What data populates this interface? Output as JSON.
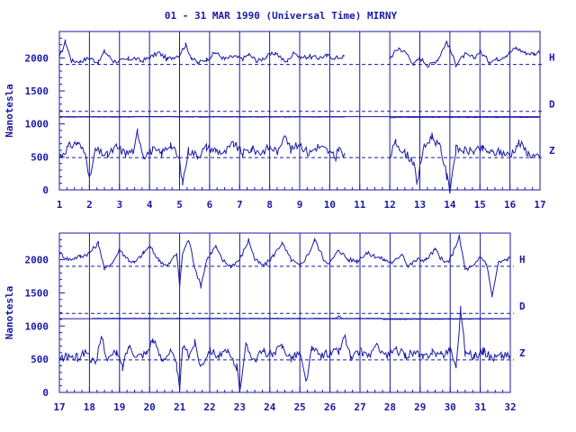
{
  "chart_data": [
    {
      "type": "line",
      "title": "01 - 31 MAR 1990 (Universal Time) MIRNY",
      "ylabel": "Nanotesla",
      "xlim": [
        1,
        17
      ],
      "ylim": [
        0,
        2400
      ],
      "x_ticks": [
        "1",
        "2",
        "3",
        "4",
        "5",
        "6",
        "7",
        "8",
        "9",
        "10",
        "11",
        "12",
        "13",
        "14",
        "15",
        "16",
        "17"
      ],
      "y_ticks": [
        "0",
        "500",
        "1000",
        "1500",
        "2000"
      ],
      "series": [
        {
          "name": "H",
          "baseline": 1900,
          "gaps": [
            [
              10.5,
              12.0
            ]
          ],
          "points": [
            [
              1,
              2000
            ],
            [
              1.2,
              2250
            ],
            [
              1.4,
              1950
            ],
            [
              1.7,
              1950
            ],
            [
              2,
              2000
            ],
            [
              2.3,
              1930
            ],
            [
              2.5,
              2100
            ],
            [
              2.8,
              1950
            ],
            [
              3,
              1950
            ],
            [
              3.3,
              1980
            ],
            [
              3.5,
              2000
            ],
            [
              3.7,
              1950
            ],
            [
              4,
              2000
            ],
            [
              4.3,
              2080
            ],
            [
              4.6,
              1980
            ],
            [
              5,
              2050
            ],
            [
              5.2,
              2200
            ],
            [
              5.4,
              2000
            ],
            [
              5.6,
              1920
            ],
            [
              5.9,
              1980
            ],
            [
              6.2,
              2080
            ],
            [
              6.5,
              1980
            ],
            [
              6.8,
              2020
            ],
            [
              7.1,
              1980
            ],
            [
              7.3,
              2050
            ],
            [
              7.6,
              1950
            ],
            [
              7.9,
              2020
            ],
            [
              8.2,
              2080
            ],
            [
              8.4,
              1980
            ],
            [
              8.6,
              1950
            ],
            [
              8.8,
              2100
            ],
            [
              9.0,
              2000
            ],
            [
              9.3,
              2020
            ],
            [
              9.6,
              2000
            ],
            [
              9.9,
              2030
            ],
            [
              10.2,
              2000
            ],
            [
              10.45,
              2020
            ],
            [
              12.0,
              2000
            ],
            [
              12.3,
              2150
            ],
            [
              12.6,
              2050
            ],
            [
              12.8,
              1900
            ],
            [
              13.0,
              2000
            ],
            [
              13.3,
              1880
            ],
            [
              13.6,
              1980
            ],
            [
              13.9,
              2250
            ],
            [
              14.2,
              1900
            ],
            [
              14.5,
              2050
            ],
            [
              14.8,
              2000
            ],
            [
              15.0,
              2100
            ],
            [
              15.3,
              1950
            ],
            [
              15.6,
              1980
            ],
            [
              15.9,
              2050
            ],
            [
              16.2,
              2150
            ],
            [
              16.5,
              2080
            ],
            [
              16.8,
              2060
            ],
            [
              17,
              2100
            ]
          ]
        },
        {
          "name": "D",
          "baseline": 1190,
          "gaps": [
            [
              10.5,
              12.0
            ]
          ],
          "points": [
            [
              1,
              1105
            ],
            [
              3.4,
              1105
            ],
            [
              3.5,
              1110
            ],
            [
              4.8,
              1110
            ],
            [
              5,
              1105
            ],
            [
              10.45,
              1105
            ],
            [
              12.0,
              1090
            ],
            [
              12.2,
              1100
            ],
            [
              17,
              1100
            ]
          ]
        },
        {
          "name": "Z",
          "baseline": 490,
          "gaps": [
            [
              10.5,
              12.0
            ]
          ],
          "points": [
            [
              1,
              500
            ],
            [
              1.3,
              650
            ],
            [
              1.6,
              720
            ],
            [
              1.9,
              520
            ],
            [
              2.0,
              150
            ],
            [
              2.2,
              600
            ],
            [
              2.6,
              520
            ],
            [
              2.9,
              650
            ],
            [
              3.2,
              550
            ],
            [
              3.5,
              600
            ],
            [
              3.6,
              900
            ],
            [
              3.8,
              520
            ],
            [
              4.1,
              600
            ],
            [
              4.4,
              550
            ],
            [
              4.7,
              700
            ],
            [
              5.0,
              450
            ],
            [
              5.1,
              100
            ],
            [
              5.3,
              600
            ],
            [
              5.6,
              520
            ],
            [
              5.9,
              650
            ],
            [
              6.2,
              600
            ],
            [
              6.5,
              560
            ],
            [
              6.8,
              700
            ],
            [
              7.1,
              550
            ],
            [
              7.4,
              620
            ],
            [
              7.7,
              560
            ],
            [
              8.0,
              650
            ],
            [
              8.3,
              580
            ],
            [
              8.5,
              880
            ],
            [
              8.7,
              600
            ],
            [
              9.0,
              700
            ],
            [
              9.3,
              550
            ],
            [
              9.6,
              660
            ],
            [
              9.9,
              600
            ],
            [
              10.2,
              480
            ],
            [
              10.3,
              650
            ],
            [
              10.45,
              500
            ],
            [
              12.0,
              500
            ],
            [
              12.2,
              720
            ],
            [
              12.5,
              560
            ],
            [
              12.8,
              420
            ],
            [
              12.9,
              60
            ],
            [
              13.1,
              600
            ],
            [
              13.4,
              820
            ],
            [
              13.7,
              620
            ],
            [
              13.9,
              200
            ],
            [
              14.0,
              0
            ],
            [
              14.2,
              620
            ],
            [
              14.5,
              600
            ],
            [
              14.8,
              580
            ],
            [
              15.1,
              620
            ],
            [
              15.4,
              560
            ],
            [
              15.7,
              580
            ],
            [
              16.0,
              520
            ],
            [
              16.3,
              720
            ],
            [
              16.6,
              560
            ],
            [
              17,
              470
            ]
          ]
        }
      ]
    },
    {
      "type": "line",
      "title": "",
      "ylabel": "Nanotesla",
      "xlim": [
        17,
        32
      ],
      "ylim": [
        0,
        2400
      ],
      "x_ticks": [
        "17",
        "18",
        "19",
        "20",
        "21",
        "22",
        "23",
        "24",
        "25",
        "26",
        "27",
        "28",
        "29",
        "30",
        "31",
        "32"
      ],
      "y_ticks": [
        "0",
        "500",
        "1000",
        "1500",
        "2000"
      ],
      "series": [
        {
          "name": "H",
          "baseline": 1900,
          "gaps": [],
          "points": [
            [
              17,
              2100
            ],
            [
              17.3,
              2000
            ],
            [
              17.7,
              2050
            ],
            [
              18,
              2100
            ],
            [
              18.3,
              2250
            ],
            [
              18.5,
              1850
            ],
            [
              18.8,
              1980
            ],
            [
              19.0,
              2150
            ],
            [
              19.3,
              2000
            ],
            [
              19.5,
              1950
            ],
            [
              19.8,
              2100
            ],
            [
              20.0,
              2200
            ],
            [
              20.3,
              2000
            ],
            [
              20.6,
              1900
            ],
            [
              20.9,
              2100
            ],
            [
              21.0,
              1600
            ],
            [
              21.1,
              2100
            ],
            [
              21.3,
              2300
            ],
            [
              21.5,
              1900
            ],
            [
              21.7,
              1600
            ],
            [
              21.9,
              2000
            ],
            [
              22.2,
              2200
            ],
            [
              22.4,
              2000
            ],
            [
              22.7,
              1900
            ],
            [
              23.0,
              2000
            ],
            [
              23.3,
              2300
            ],
            [
              23.5,
              2000
            ],
            [
              23.8,
              1900
            ],
            [
              24.1,
              2050
            ],
            [
              24.4,
              2250
            ],
            [
              24.7,
              2000
            ],
            [
              25.0,
              1900
            ],
            [
              25.3,
              2100
            ],
            [
              25.5,
              2300
            ],
            [
              25.8,
              2000
            ],
            [
              26.0,
              1950
            ],
            [
              26.3,
              2150
            ],
            [
              26.6,
              2000
            ],
            [
              26.9,
              1980
            ],
            [
              27.2,
              2100
            ],
            [
              27.5,
              2050
            ],
            [
              27.8,
              2000
            ],
            [
              28.1,
              1950
            ],
            [
              28.4,
              2100
            ],
            [
              28.6,
              1900
            ],
            [
              28.9,
              2000
            ],
            [
              29.2,
              2000
            ],
            [
              29.5,
              2150
            ],
            [
              29.8,
              1950
            ],
            [
              30.0,
              2000
            ],
            [
              30.3,
              2350
            ],
            [
              30.5,
              1850
            ],
            [
              30.8,
              1900
            ],
            [
              31.0,
              2050
            ],
            [
              31.2,
              1950
            ],
            [
              31.4,
              1450
            ],
            [
              31.6,
              1950
            ],
            [
              31.9,
              2000
            ],
            [
              32,
              2050
            ]
          ]
        },
        {
          "name": "D",
          "baseline": 1190,
          "gaps": [
            [
              17.0,
              18.1
            ]
          ],
          "points": [
            [
              18.1,
              1115
            ],
            [
              26.2,
              1115
            ],
            [
              26.3,
              1150
            ],
            [
              26.4,
              1115
            ],
            [
              27.7,
              1115
            ],
            [
              27.8,
              1100
            ],
            [
              32,
              1110
            ]
          ]
        },
        {
          "name": "Z",
          "baseline": 490,
          "gaps": [],
          "points": [
            [
              17,
              500
            ],
            [
              17.3,
              550
            ],
            [
              17.6,
              520
            ],
            [
              17.9,
              620
            ],
            [
              18.0,
              550
            ],
            [
              18.2,
              400
            ],
            [
              18.4,
              850
            ],
            [
              18.6,
              500
            ],
            [
              18.9,
              600
            ],
            [
              19.1,
              380
            ],
            [
              19.3,
              700
            ],
            [
              19.6,
              550
            ],
            [
              19.9,
              600
            ],
            [
              20.1,
              800
            ],
            [
              20.4,
              500
            ],
            [
              20.7,
              620
            ],
            [
              20.9,
              400
            ],
            [
              21.0,
              0
            ],
            [
              21.1,
              700
            ],
            [
              21.3,
              550
            ],
            [
              21.5,
              750
            ],
            [
              21.7,
              400
            ],
            [
              22.0,
              650
            ],
            [
              22.3,
              550
            ],
            [
              22.6,
              600
            ],
            [
              22.9,
              380
            ],
            [
              23.0,
              50
            ],
            [
              23.2,
              700
            ],
            [
              23.5,
              500
            ],
            [
              23.8,
              620
            ],
            [
              24.1,
              550
            ],
            [
              24.4,
              700
            ],
            [
              24.7,
              520
            ],
            [
              25.0,
              600
            ],
            [
              25.2,
              150
            ],
            [
              25.4,
              650
            ],
            [
              25.7,
              550
            ],
            [
              26.0,
              600
            ],
            [
              26.3,
              620
            ],
            [
              26.5,
              850
            ],
            [
              26.7,
              500
            ],
            [
              27.0,
              620
            ],
            [
              27.3,
              560
            ],
            [
              27.6,
              700
            ],
            [
              27.9,
              540
            ],
            [
              28.2,
              640
            ],
            [
              28.5,
              560
            ],
            [
              28.8,
              600
            ],
            [
              29.1,
              520
            ],
            [
              29.4,
              620
            ],
            [
              29.7,
              560
            ],
            [
              30.0,
              650
            ],
            [
              30.2,
              400
            ],
            [
              30.35,
              1270
            ],
            [
              30.5,
              600
            ],
            [
              30.8,
              550
            ],
            [
              31.1,
              620
            ],
            [
              31.4,
              520
            ],
            [
              31.7,
              560
            ],
            [
              32,
              560
            ]
          ]
        }
      ]
    }
  ]
}
